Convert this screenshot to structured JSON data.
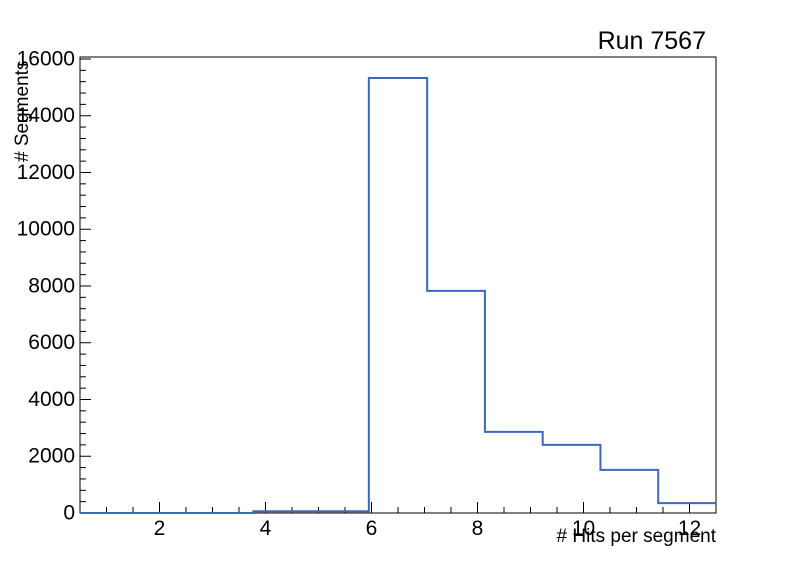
{
  "chart_data": {
    "type": "bar",
    "subtype": "step-histogram-outline",
    "title": "Run 7567",
    "xlabel": "# Hits per segment",
    "ylabel": "# Segments",
    "xlim": [
      0.5,
      12.5
    ],
    "ylim": [
      0,
      16070
    ],
    "x_major_ticks": [
      2,
      4,
      6,
      8,
      10,
      12
    ],
    "x_tick_labels": [
      "2",
      "4",
      "6",
      "8",
      "10",
      "12"
    ],
    "x_minor_step": 0.5,
    "y_major_step": 2000,
    "y_minor_step": 400,
    "y_tick_labels": [
      "0",
      "2000",
      "4000",
      "6000",
      "8000",
      "10000",
      "12000",
      "14000",
      "16000"
    ],
    "bin_edges": [
      0.5,
      1.59,
      2.68,
      3.77,
      4.86,
      5.95,
      7.05,
      8.14,
      9.23,
      10.32,
      11.41,
      12.5
    ],
    "values": [
      0,
      0,
      0,
      60,
      60,
      15330,
      7830,
      2860,
      2400,
      1520,
      350
    ],
    "grid": false,
    "legend": null,
    "colors": {
      "line": "#3e68bd",
      "axis": "#000000",
      "text": "#000000",
      "background": "#ffffff"
    }
  }
}
